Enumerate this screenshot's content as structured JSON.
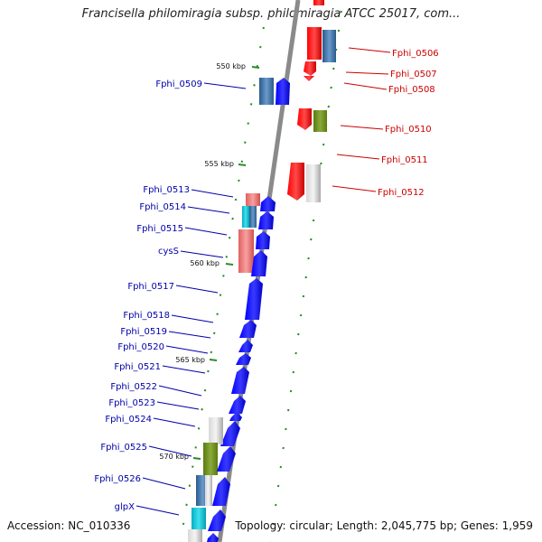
{
  "title": "Francisella philomiragia subsp. philomiragia ATCC 25017, com...",
  "accession": "Accession: NC_010336",
  "topology": "Topology: circular; Length: 2,045,775 bp; Genes: 1,959",
  "ruler": [
    "550 kbp",
    "555 kbp",
    "560 kbp",
    "565 kbp",
    "570 kbp"
  ],
  "genes_right": [
    "Fphi_0506",
    "Fphi_0507",
    "Fphi_0508",
    "Fphi_0510",
    "Fphi_0511",
    "Fphi_0512"
  ],
  "genes_left": [
    "Fphi_0509",
    "Fphi_0513",
    "Fphi_0514",
    "Fphi_0515",
    "cysS",
    "Fphi_0517",
    "Fphi_0518",
    "Fphi_0519",
    "Fphi_0520",
    "Fphi_0521",
    "Fphi_0522",
    "Fphi_0523",
    "Fphi_0524",
    "Fphi_0525",
    "Fphi_0526",
    "glpX"
  ],
  "colors": {
    "reverse_cds": "#ff0000",
    "forward_cds": "#0000ff",
    "label_right": "#cc0000",
    "label_left": "#0000aa",
    "backbone": "#8a8a8a",
    "tick": "#2a8a2a"
  }
}
